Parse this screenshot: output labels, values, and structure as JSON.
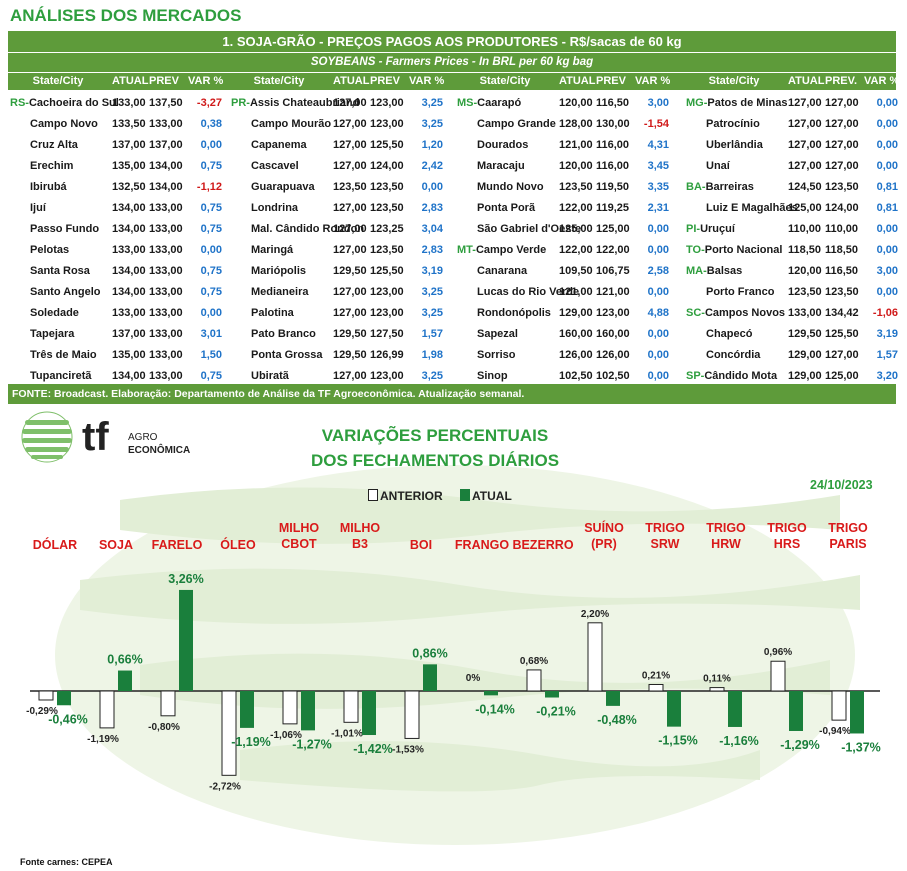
{
  "page_title": "ANÁLISES DOS MERCADOS",
  "table": {
    "title": "1. SOJA-GRÃO - PREÇOS PAGOS AOS PRODUTORES - R$/sacas de 60 kg",
    "subtitle": "SOYBEANS - Farmers Prices - In BRL per 60 kg bag",
    "headers": [
      [
        "State/City",
        "ATUAL",
        "PREV",
        "VAR %"
      ],
      [
        "State/City",
        "ATUAL",
        "PREV",
        "VAR %"
      ],
      [
        "State/City",
        "ATUAL",
        "PREV",
        "VAR %"
      ],
      [
        "State/City",
        "ATUAL",
        "PREV.",
        "VAR %"
      ]
    ],
    "columns": [
      [
        {
          "st": "RS-",
          "city": "Cachoeira do Sul",
          "atual": "133,00",
          "prev": "137,50",
          "var": "-3,27"
        },
        {
          "st": "",
          "city": "Campo Novo",
          "atual": "133,50",
          "prev": "133,00",
          "var": "0,38"
        },
        {
          "st": "",
          "city": "Cruz Alta",
          "atual": "137,00",
          "prev": "137,00",
          "var": "0,00"
        },
        {
          "st": "",
          "city": "Erechim",
          "atual": "135,00",
          "prev": "134,00",
          "var": "0,75"
        },
        {
          "st": "",
          "city": "Ibirubá",
          "atual": "132,50",
          "prev": "134,00",
          "var": "-1,12"
        },
        {
          "st": "",
          "city": "Ijuí",
          "atual": "134,00",
          "prev": "133,00",
          "var": "0,75"
        },
        {
          "st": "",
          "city": "Passo Fundo",
          "atual": "134,00",
          "prev": "133,00",
          "var": "0,75"
        },
        {
          "st": "",
          "city": "Pelotas",
          "atual": "133,00",
          "prev": "133,00",
          "var": "0,00"
        },
        {
          "st": "",
          "city": "Santa Rosa",
          "atual": "134,00",
          "prev": "133,00",
          "var": "0,75"
        },
        {
          "st": "",
          "city": "Santo Angelo",
          "atual": "134,00",
          "prev": "133,00",
          "var": "0,75"
        },
        {
          "st": "",
          "city": "Soledade",
          "atual": "133,00",
          "prev": "133,00",
          "var": "0,00"
        },
        {
          "st": "",
          "city": "Tapejara",
          "atual": "137,00",
          "prev": "133,00",
          "var": "3,01"
        },
        {
          "st": "",
          "city": "Três de Maio",
          "atual": "135,00",
          "prev": "133,00",
          "var": "1,50"
        },
        {
          "st": "",
          "city": "Tupanciretã",
          "atual": "134,00",
          "prev": "133,00",
          "var": "0,75"
        }
      ],
      [
        {
          "st": "PR-",
          "city": "Assis Chateaubriand",
          "atual": "127,00",
          "prev": "123,00",
          "var": "3,25"
        },
        {
          "st": "",
          "city": "Campo Mourão",
          "atual": "127,00",
          "prev": "123,00",
          "var": "3,25"
        },
        {
          "st": "",
          "city": "Capanema",
          "atual": "127,00",
          "prev": "125,50",
          "var": "1,20"
        },
        {
          "st": "",
          "city": "Cascavel",
          "atual": "127,00",
          "prev": "124,00",
          "var": "2,42"
        },
        {
          "st": "",
          "city": "Guarapuava",
          "atual": "123,50",
          "prev": "123,50",
          "var": "0,00"
        },
        {
          "st": "",
          "city": "Londrina",
          "atual": "127,00",
          "prev": "123,50",
          "var": "2,83"
        },
        {
          "st": "",
          "city": "Mal. Cândido Rondon",
          "atual": "127,00",
          "prev": "123,25",
          "var": "3,04"
        },
        {
          "st": "",
          "city": "Maringá",
          "atual": "127,00",
          "prev": "123,50",
          "var": "2,83"
        },
        {
          "st": "",
          "city": "Mariópolis",
          "atual": "129,50",
          "prev": "125,50",
          "var": "3,19"
        },
        {
          "st": "",
          "city": "Medianeira",
          "atual": "127,00",
          "prev": "123,00",
          "var": "3,25"
        },
        {
          "st": "",
          "city": "Palotina",
          "atual": "127,00",
          "prev": "123,00",
          "var": "3,25"
        },
        {
          "st": "",
          "city": "Pato Branco",
          "atual": "129,50",
          "prev": "127,50",
          "var": "1,57"
        },
        {
          "st": "",
          "city": "Ponta Grossa",
          "atual": "129,50",
          "prev": "126,99",
          "var": "1,98"
        },
        {
          "st": "",
          "city": "Ubiratã",
          "atual": "127,00",
          "prev": "123,00",
          "var": "3,25"
        }
      ],
      [
        {
          "st": "MS-",
          "city": "Caarapó",
          "atual": "120,00",
          "prev": "116,50",
          "var": "3,00"
        },
        {
          "st": "",
          "city": "Campo Grande",
          "atual": "128,00",
          "prev": "130,00",
          "var": "-1,54"
        },
        {
          "st": "",
          "city": "Dourados",
          "atual": "121,00",
          "prev": "116,00",
          "var": "4,31"
        },
        {
          "st": "",
          "city": "Maracaju",
          "atual": "120,00",
          "prev": "116,00",
          "var": "3,45"
        },
        {
          "st": "",
          "city": "Mundo Novo",
          "atual": "123,50",
          "prev": "119,50",
          "var": "3,35"
        },
        {
          "st": "",
          "city": "Ponta Porã",
          "atual": "122,00",
          "prev": "119,25",
          "var": "2,31"
        },
        {
          "st": "",
          "city": "São Gabriel d'Oeste",
          "atual": "125,00",
          "prev": "125,00",
          "var": "0,00"
        },
        {
          "st": "MT-",
          "city": "Campo Verde",
          "atual": "122,00",
          "prev": "122,00",
          "var": "0,00"
        },
        {
          "st": "",
          "city": "Canarana",
          "atual": "109,50",
          "prev": "106,75",
          "var": "2,58"
        },
        {
          "st": "",
          "city": "Lucas do Rio Verde",
          "atual": "121,00",
          "prev": "121,00",
          "var": "0,00"
        },
        {
          "st": "",
          "city": "Rondonópolis",
          "atual": "129,00",
          "prev": "123,00",
          "var": "4,88"
        },
        {
          "st": "",
          "city": "Sapezal",
          "atual": "160,00",
          "prev": "160,00",
          "var": "0,00"
        },
        {
          "st": "",
          "city": "Sorriso",
          "atual": "126,00",
          "prev": "126,00",
          "var": "0,00"
        },
        {
          "st": "",
          "city": "Sinop",
          "atual": "102,50",
          "prev": "102,50",
          "var": "0,00"
        }
      ],
      [
        {
          "st": "MG-",
          "city": "Patos de Minas",
          "atual": "127,00",
          "prev": "127,00",
          "var": "0,00"
        },
        {
          "st": "",
          "city": "Patrocínio",
          "atual": "127,00",
          "prev": "127,00",
          "var": "0,00"
        },
        {
          "st": "",
          "city": "Uberlândia",
          "atual": "127,00",
          "prev": "127,00",
          "var": "0,00"
        },
        {
          "st": "",
          "city": "Unaí",
          "atual": "127,00",
          "prev": "127,00",
          "var": "0,00"
        },
        {
          "st": "BA-",
          "city": "Barreiras",
          "atual": "124,50",
          "prev": "123,50",
          "var": "0,81"
        },
        {
          "st": "",
          "city": "Luiz E Magalhães",
          "atual": "125,00",
          "prev": "124,00",
          "var": "0,81"
        },
        {
          "st": "PI-",
          "city": "Uruçuí",
          "atual": "110,00",
          "prev": "110,00",
          "var": "0,00"
        },
        {
          "st": "TO-",
          "city": "Porto Nacional",
          "atual": "118,50",
          "prev": "118,50",
          "var": "0,00"
        },
        {
          "st": "MA-",
          "city": "Balsas",
          "atual": "120,00",
          "prev": "116,50",
          "var": "3,00"
        },
        {
          "st": "",
          "city": "Porto Franco",
          "atual": "123,50",
          "prev": "123,50",
          "var": "0,00"
        },
        {
          "st": "SC-",
          "city": "Campos Novos",
          "atual": "133,00",
          "prev": "134,42",
          "var": "-1,06"
        },
        {
          "st": "",
          "city": "Chapecó",
          "atual": "129,50",
          "prev": "125,50",
          "var": "3,19"
        },
        {
          "st": "",
          "city": "Concórdia",
          "atual": "129,00",
          "prev": "127,00",
          "var": "1,57"
        },
        {
          "st": "SP-",
          "city": "Cândido Mota",
          "atual": "129,00",
          "prev": "125,00",
          "var": "3,20"
        }
      ]
    ],
    "footer": "FONTE: Broadcast. Elaboração: Departamento de Análise da TF Agroeconômica. Atualização semanal."
  },
  "logo": {
    "mark": "tf",
    "line1": "AGRO",
    "line2": "ECONÔMICA"
  },
  "chart_title": [
    "VARIAÇÕES PERCENTUAIS",
    "DOS FECHAMENTOS DIÁRIOS"
  ],
  "date": "24/10/2023",
  "source": "Fonte carnes: CEPEA",
  "colors": {
    "green_header": "#5e9b3a",
    "title_green": "#2e9e3e",
    "bar_current": "#1a7f3c",
    "category_red": "#d91a1a",
    "positive_blue": "#1f73c8",
    "negative_red": "#d01919"
  },
  "chart_data": {
    "type": "bar",
    "categories": [
      [
        "DÓLAR"
      ],
      [
        "SOJA"
      ],
      [
        "FARELO"
      ],
      [
        "ÓLEO"
      ],
      [
        "MILHO",
        "CBOT"
      ],
      [
        "MILHO",
        "B3"
      ],
      [
        "BOI"
      ],
      [
        "FRANGO"
      ],
      [
        "BEZERRO"
      ],
      [
        "SUÍNO",
        "(PR)"
      ],
      [
        "TRIGO",
        "SRW"
      ],
      [
        "TRIGO",
        "HRW"
      ],
      [
        "TRIGO",
        "HRS"
      ],
      [
        "TRIGO",
        "PARIS"
      ]
    ],
    "series": [
      {
        "name": "ANTERIOR",
        "values": [
          -0.29,
          -1.19,
          -0.8,
          -2.72,
          -1.06,
          -1.01,
          -1.53,
          0,
          0.68,
          2.2,
          0.21,
          0.11,
          0.96,
          -0.94
        ],
        "labels": [
          "-0,29%",
          "-1,19%",
          "-0,80%",
          "-2,72%",
          "-1,06%",
          "-1,01%",
          "-1,53%",
          "0%",
          "0,68%",
          "2,20%",
          "0,21%",
          "0,11%",
          "0,96%",
          "-0,94%"
        ]
      },
      {
        "name": "ATUAL",
        "values": [
          -0.46,
          0.66,
          3.26,
          -1.19,
          -1.27,
          -1.42,
          0.86,
          -0.14,
          -0.21,
          -0.48,
          -1.15,
          -1.16,
          -1.29,
          -1.37
        ],
        "labels": [
          "-0,46%",
          "0,66%",
          "3,26%",
          "-1,19%",
          "-1,27%",
          "-1,42%",
          "0,86%",
          "-0,14%",
          "-0,21%",
          "-0,48%",
          "-1,15%",
          "-1,16%",
          "-1,29%",
          "-1,37%"
        ]
      }
    ],
    "legend": "top-center",
    "grid": false
  }
}
